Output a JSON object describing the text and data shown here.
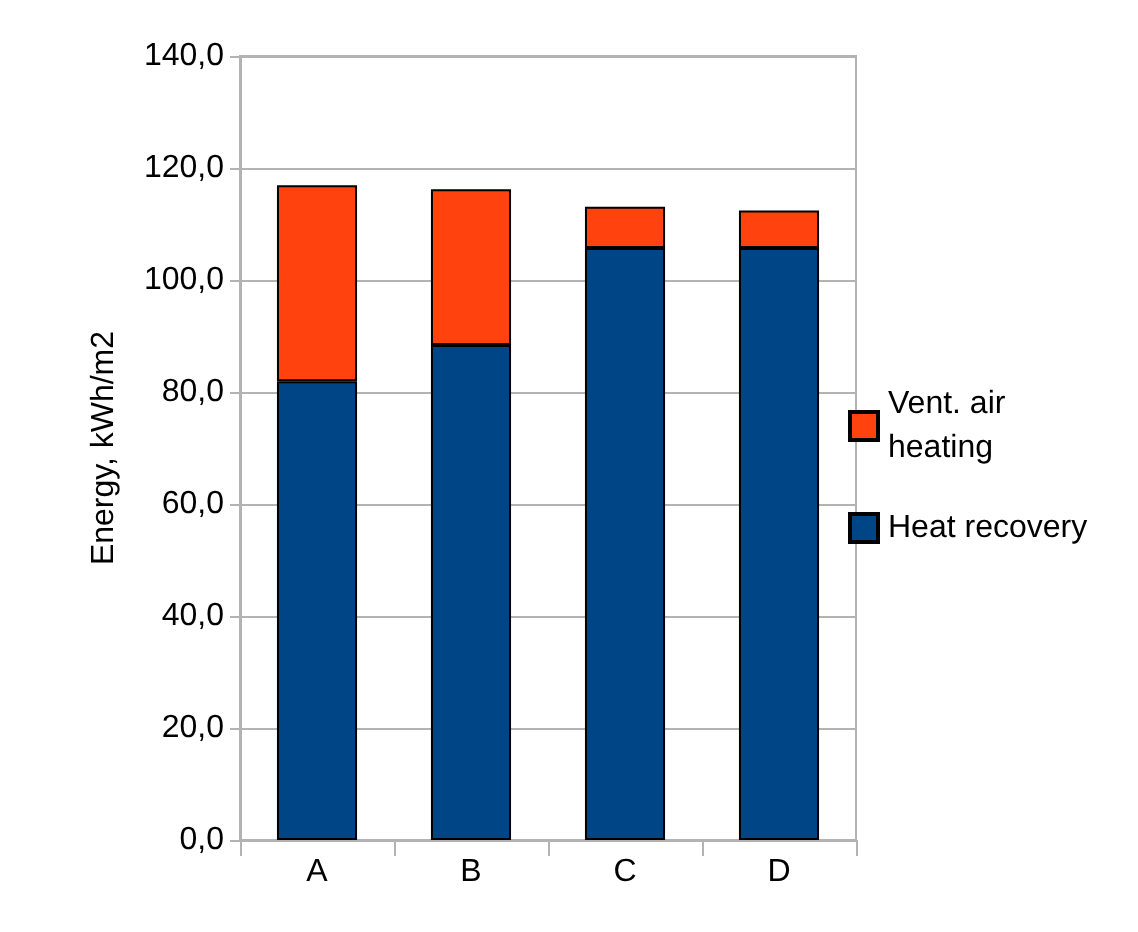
{
  "chart_data": {
    "type": "bar",
    "stacked": true,
    "ylabel": "Energy, kWh/m2",
    "categories": [
      "A",
      "B",
      "C",
      "D"
    ],
    "series": [
      {
        "name": "Heat recovery",
        "color": "#004586",
        "values": [
          81.9,
          88.4,
          105.7,
          105.7
        ]
      },
      {
        "name": "Vent. air heating",
        "color": "#ff420e",
        "values": [
          35.0,
          27.8,
          7.4,
          6.7
        ]
      }
    ],
    "ylim": [
      0,
      140
    ],
    "yticks": [
      {
        "value": 0,
        "label": "0,0"
      },
      {
        "value": 20,
        "label": "20,0"
      },
      {
        "value": 40,
        "label": "40,0"
      },
      {
        "value": 60,
        "label": "60,0"
      },
      {
        "value": 80,
        "label": "80,0"
      },
      {
        "value": 100,
        "label": "100,0"
      },
      {
        "value": 120,
        "label": "120,0"
      },
      {
        "value": 140,
        "label": "140,0"
      }
    ],
    "grid": "y",
    "legend": "right"
  }
}
